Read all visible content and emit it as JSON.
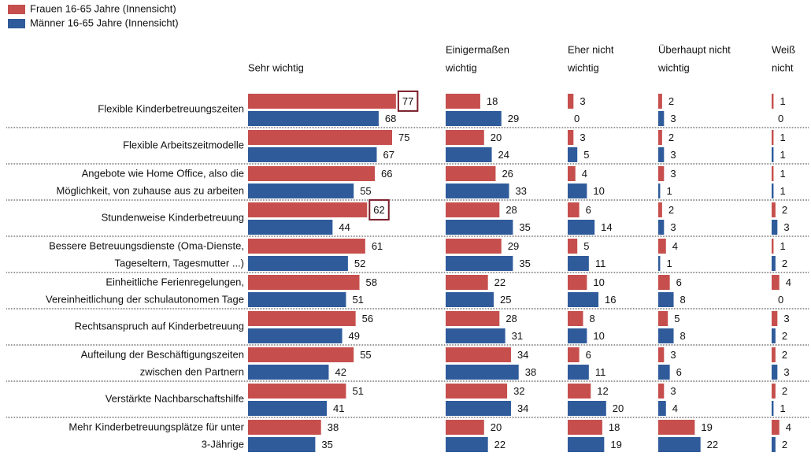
{
  "chart_data": {
    "type": "bar",
    "orientation": "horizontal",
    "panels": [
      [
        "Sehr wichtig"
      ],
      [
        "Einigermaßen",
        "wichtig"
      ],
      [
        "Eher nicht",
        "wichtig"
      ],
      [
        "Überhaupt nicht",
        "wichtig"
      ],
      [
        "Weiß",
        "nicht"
      ]
    ],
    "categories": [
      [
        "Flexible Kinderbetreuungszeiten"
      ],
      [
        "Flexible Arbeitszeitmodelle"
      ],
      [
        "Angebote wie Home Office, also die",
        "Möglichkeit, von zuhause aus zu arbeiten"
      ],
      [
        "Stundenweise Kinderbetreuung"
      ],
      [
        "Bessere Betreuungsdienste (Oma-Dienste,",
        "Tageseltern, Tagesmutter ...)"
      ],
      [
        "Einheitliche Ferienregelungen,",
        "Vereinheitlichung der schulautonomen Tage"
      ],
      [
        "Rechtsanspruch auf Kinderbetreuung"
      ],
      [
        "Aufteilung der Beschäftigungszeiten",
        "zwischen den Partnern"
      ],
      [
        "Verstärkte Nachbarschaftshilfe"
      ],
      [
        "Mehr Kinderbetreuungsplätze für unter",
        "3-Jährige"
      ]
    ],
    "series": [
      {
        "name": "Frauen 16-65 Jahre (Innensicht)",
        "color": "#c64f4d",
        "values": [
          [
            77,
            75,
            66,
            62,
            61,
            58,
            56,
            55,
            51,
            38
          ],
          [
            18,
            20,
            26,
            28,
            29,
            22,
            28,
            34,
            32,
            20
          ],
          [
            3,
            3,
            4,
            6,
            5,
            10,
            8,
            6,
            12,
            18
          ],
          [
            2,
            2,
            3,
            2,
            4,
            6,
            5,
            3,
            3,
            19
          ],
          [
            1,
            1,
            1,
            2,
            1,
            4,
            3,
            2,
            2,
            4
          ]
        ]
      },
      {
        "name": "Männer 16-65 Jahre (Innensicht)",
        "color": "#2f5b9b",
        "values": [
          [
            68,
            67,
            55,
            44,
            52,
            51,
            49,
            42,
            41,
            35
          ],
          [
            29,
            24,
            33,
            35,
            35,
            25,
            31,
            38,
            34,
            22
          ],
          [
            0,
            5,
            10,
            14,
            11,
            16,
            10,
            11,
            20,
            19
          ],
          [
            3,
            3,
            1,
            3,
            1,
            8,
            8,
            6,
            4,
            22
          ],
          [
            0,
            1,
            1,
            3,
            2,
            0,
            2,
            3,
            1,
            2
          ]
        ]
      }
    ],
    "highlights": [
      {
        "series": 0,
        "panel": 0,
        "index": 0,
        "color": "#7a1f2b"
      },
      {
        "series": 0,
        "panel": 0,
        "index": 3,
        "color": "#7a1f2b"
      }
    ]
  }
}
